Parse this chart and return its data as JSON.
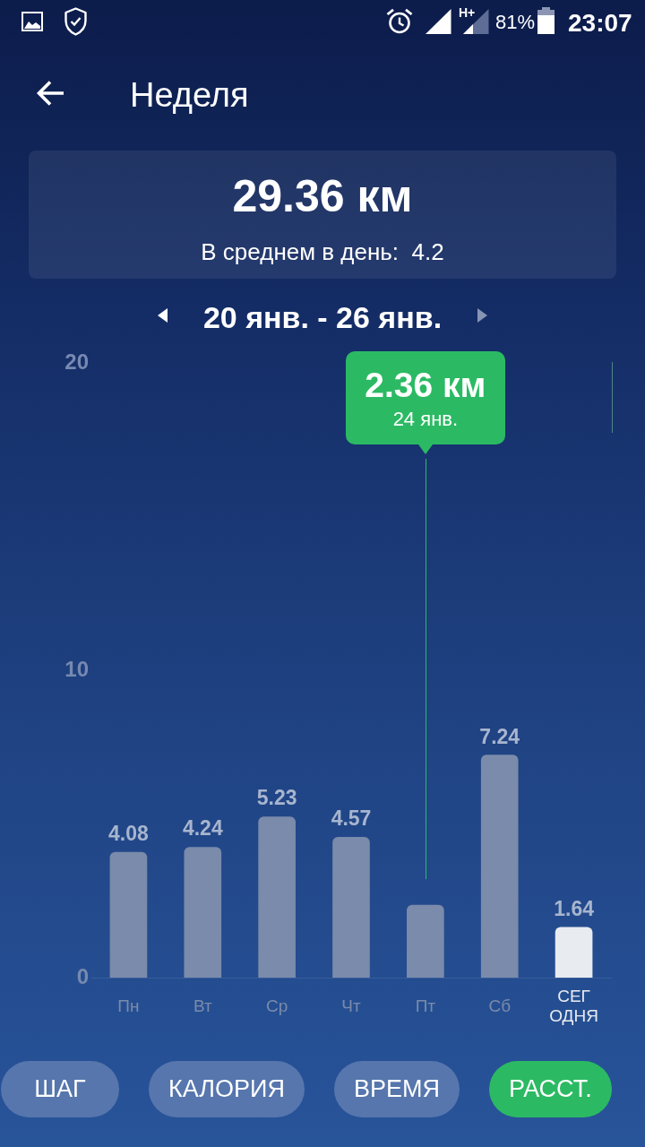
{
  "chart_data": {
    "type": "bar",
    "title": "Неделя",
    "subtitle": "20 янв. - 26 янв.",
    "categories": [
      "Пн",
      "Вт",
      "Ср",
      "Чт",
      "Пт",
      "Сб",
      "СЕГОДНЯ"
    ],
    "values": [
      4.08,
      4.24,
      5.23,
      4.57,
      2.36,
      7.24,
      1.64
    ],
    "colors": [
      "#7a8bab",
      "#7a8bab",
      "#7a8bab",
      "#7a8bab",
      "#7a8bab",
      "#7a8bab",
      "#e8ebf0"
    ],
    "value_labels": [
      "4.08",
      "4.24",
      "5.23",
      "4.57",
      null,
      "7.24",
      "1.64"
    ],
    "ylim": [
      0,
      20
    ],
    "yticks": [
      0,
      10,
      20
    ],
    "ref_lines": [
      {
        "axis": "x",
        "value": "Пт",
        "color": "#2bba63"
      }
    ],
    "annotations": [
      "H+",
      "81%",
      "23:07",
      "29.36 км",
      "В среднем в день:  4.2",
      "2.36 км",
      "24 янв.",
      "ШАГ",
      "КАЛОРИЯ",
      "ВРЕМЯ",
      "РАССТ."
    ]
  }
}
